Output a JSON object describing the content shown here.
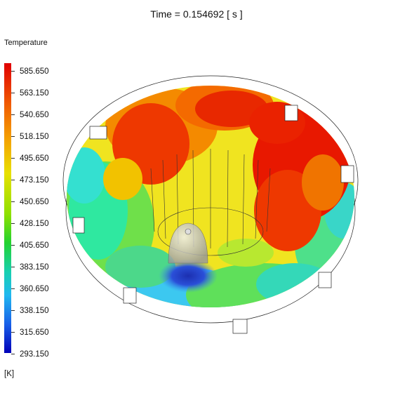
{
  "header": {
    "title": "Time = 0.154692 [ s ]"
  },
  "legend": {
    "title": "Temperature",
    "unit": "[K]",
    "ticks": [
      "585.650",
      "563.150",
      "540.650",
      "518.150",
      "495.650",
      "473.150",
      "450.650",
      "428.150",
      "405.650",
      "383.150",
      "360.650",
      "338.150",
      "315.650",
      "293.150"
    ],
    "colors": {
      "max": "#e00000",
      "mid": "#22d230",
      "min": "#0000b8"
    }
  }
}
